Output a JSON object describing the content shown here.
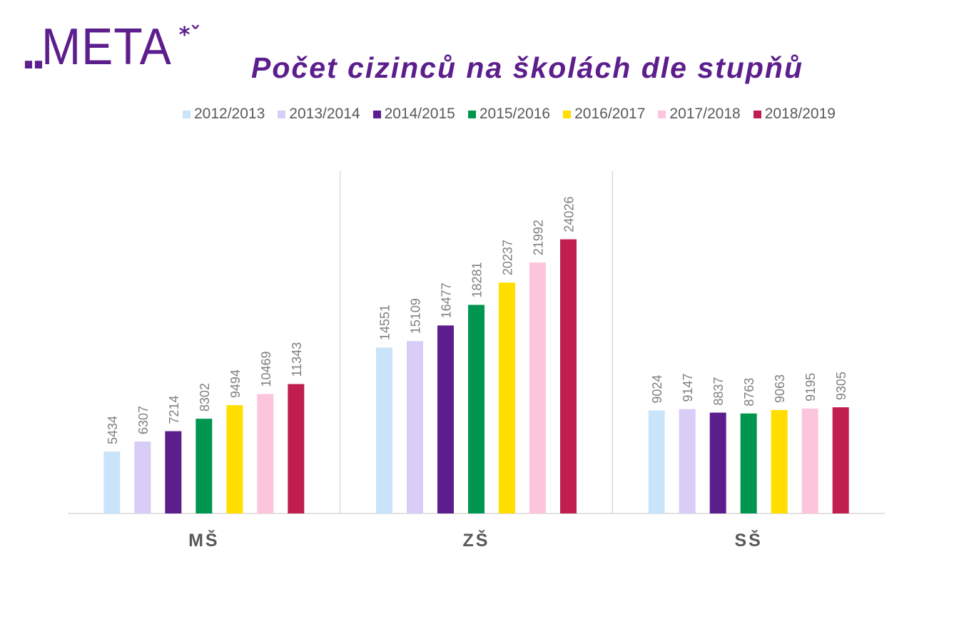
{
  "logo": {
    "dots": "..",
    "text": "META",
    "mark": "*ˇ"
  },
  "chart_data": {
    "type": "bar",
    "title": "Počet cizinců na školách dle stupňů",
    "categories": [
      "MŠ",
      "ZŠ",
      "SŠ"
    ],
    "series": [
      {
        "name": "2012/2013",
        "color": "#c9e4fa",
        "values": [
          5434,
          14551,
          9024
        ]
      },
      {
        "name": "2013/2014",
        "color": "#d7cdf7",
        "values": [
          6307,
          15109,
          9147
        ]
      },
      {
        "name": "2014/2015",
        "color": "#5c1e8c",
        "values": [
          7214,
          16477,
          8837
        ]
      },
      {
        "name": "2015/2016",
        "color": "#00964f",
        "values": [
          8302,
          18281,
          8763
        ]
      },
      {
        "name": "2016/2017",
        "color": "#ffde00",
        "values": [
          9494,
          20237,
          9063
        ]
      },
      {
        "name": "2017/2018",
        "color": "#fdc5dc",
        "values": [
          10469,
          21992,
          9195
        ]
      },
      {
        "name": "2018/2019",
        "color": "#bf1e4e",
        "values": [
          11343,
          24026,
          9305
        ]
      }
    ],
    "ylim": [
      0,
      30000
    ],
    "legend_position": "top",
    "grid": false,
    "data_labels": true
  }
}
